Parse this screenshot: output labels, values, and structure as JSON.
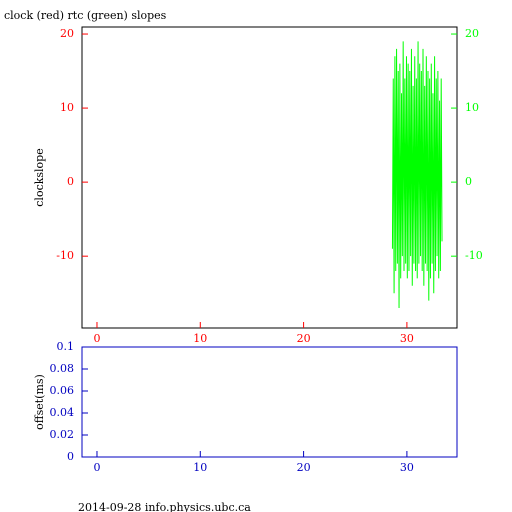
{
  "chart_data": [
    {
      "type": "line",
      "title": "clock (red) rtc (green) slopes",
      "ylabel": "clockslope",
      "xlim": [
        -1.45,
        34.85
      ],
      "xticks": [
        0,
        10,
        20,
        30
      ],
      "ylim": [
        -19.7,
        20.95
      ],
      "yticks": [
        -10,
        0,
        10,
        20
      ],
      "y2lim": [
        -19.7,
        20.95
      ],
      "y2ticks": [
        -10,
        0,
        10,
        20
      ],
      "axis_color": "#000000",
      "tick_color": "#ff0000",
      "y2_color": "#00ff00",
      "series": [
        {
          "color": "#00ff00",
          "axis": "y2",
          "x": [
            28.6,
            28.68,
            28.76,
            28.84,
            28.92,
            29.0,
            29.08,
            29.16,
            29.24,
            29.32,
            29.4,
            29.48,
            29.56,
            29.64,
            29.72,
            29.8,
            29.88,
            29.96,
            30.04,
            30.12,
            30.2,
            30.28,
            30.36,
            30.44,
            30.52,
            30.6,
            30.68,
            30.76,
            30.84,
            30.92,
            31.0,
            31.08,
            31.16,
            31.24,
            31.32,
            31.4,
            31.48,
            31.56,
            31.64,
            31.72,
            31.8,
            31.88,
            31.96,
            32.04,
            32.12,
            32.2,
            32.28,
            32.36,
            32.44,
            32.52,
            32.6,
            32.68,
            32.76,
            32.84,
            32.92,
            33.0,
            33.08,
            33.16,
            33.24,
            33.32,
            33.4
          ],
          "values": [
            -9,
            14,
            -15,
            17,
            -12,
            18,
            -11,
            15,
            -17,
            16,
            -13,
            12,
            -10,
            19,
            -12,
            14,
            -11,
            17,
            -13,
            16,
            -12,
            15,
            -10,
            18,
            -14,
            13,
            -11,
            17,
            -12,
            14,
            -13,
            19,
            -11,
            16,
            -10,
            15,
            -12,
            18,
            -14,
            13,
            -11,
            17,
            -12,
            15,
            -16,
            14,
            -13,
            16,
            -11,
            12,
            -15,
            17,
            -12,
            14,
            -10,
            15,
            -13,
            11,
            -12,
            14,
            -8
          ]
        }
      ]
    },
    {
      "type": "line",
      "ylabel": "offset(ms)",
      "xlim": [
        -1.45,
        34.85
      ],
      "xticks": [
        0,
        10,
        20,
        30
      ],
      "ylim": [
        0,
        0.1
      ],
      "yticks": [
        0,
        0.02,
        0.04,
        0.06,
        0.08,
        0.1
      ],
      "axis_color": "#0000c0",
      "tick_color": "#0000c0",
      "series": []
    }
  ],
  "footer": "2014-09-28 info.physics.ubc.ca"
}
